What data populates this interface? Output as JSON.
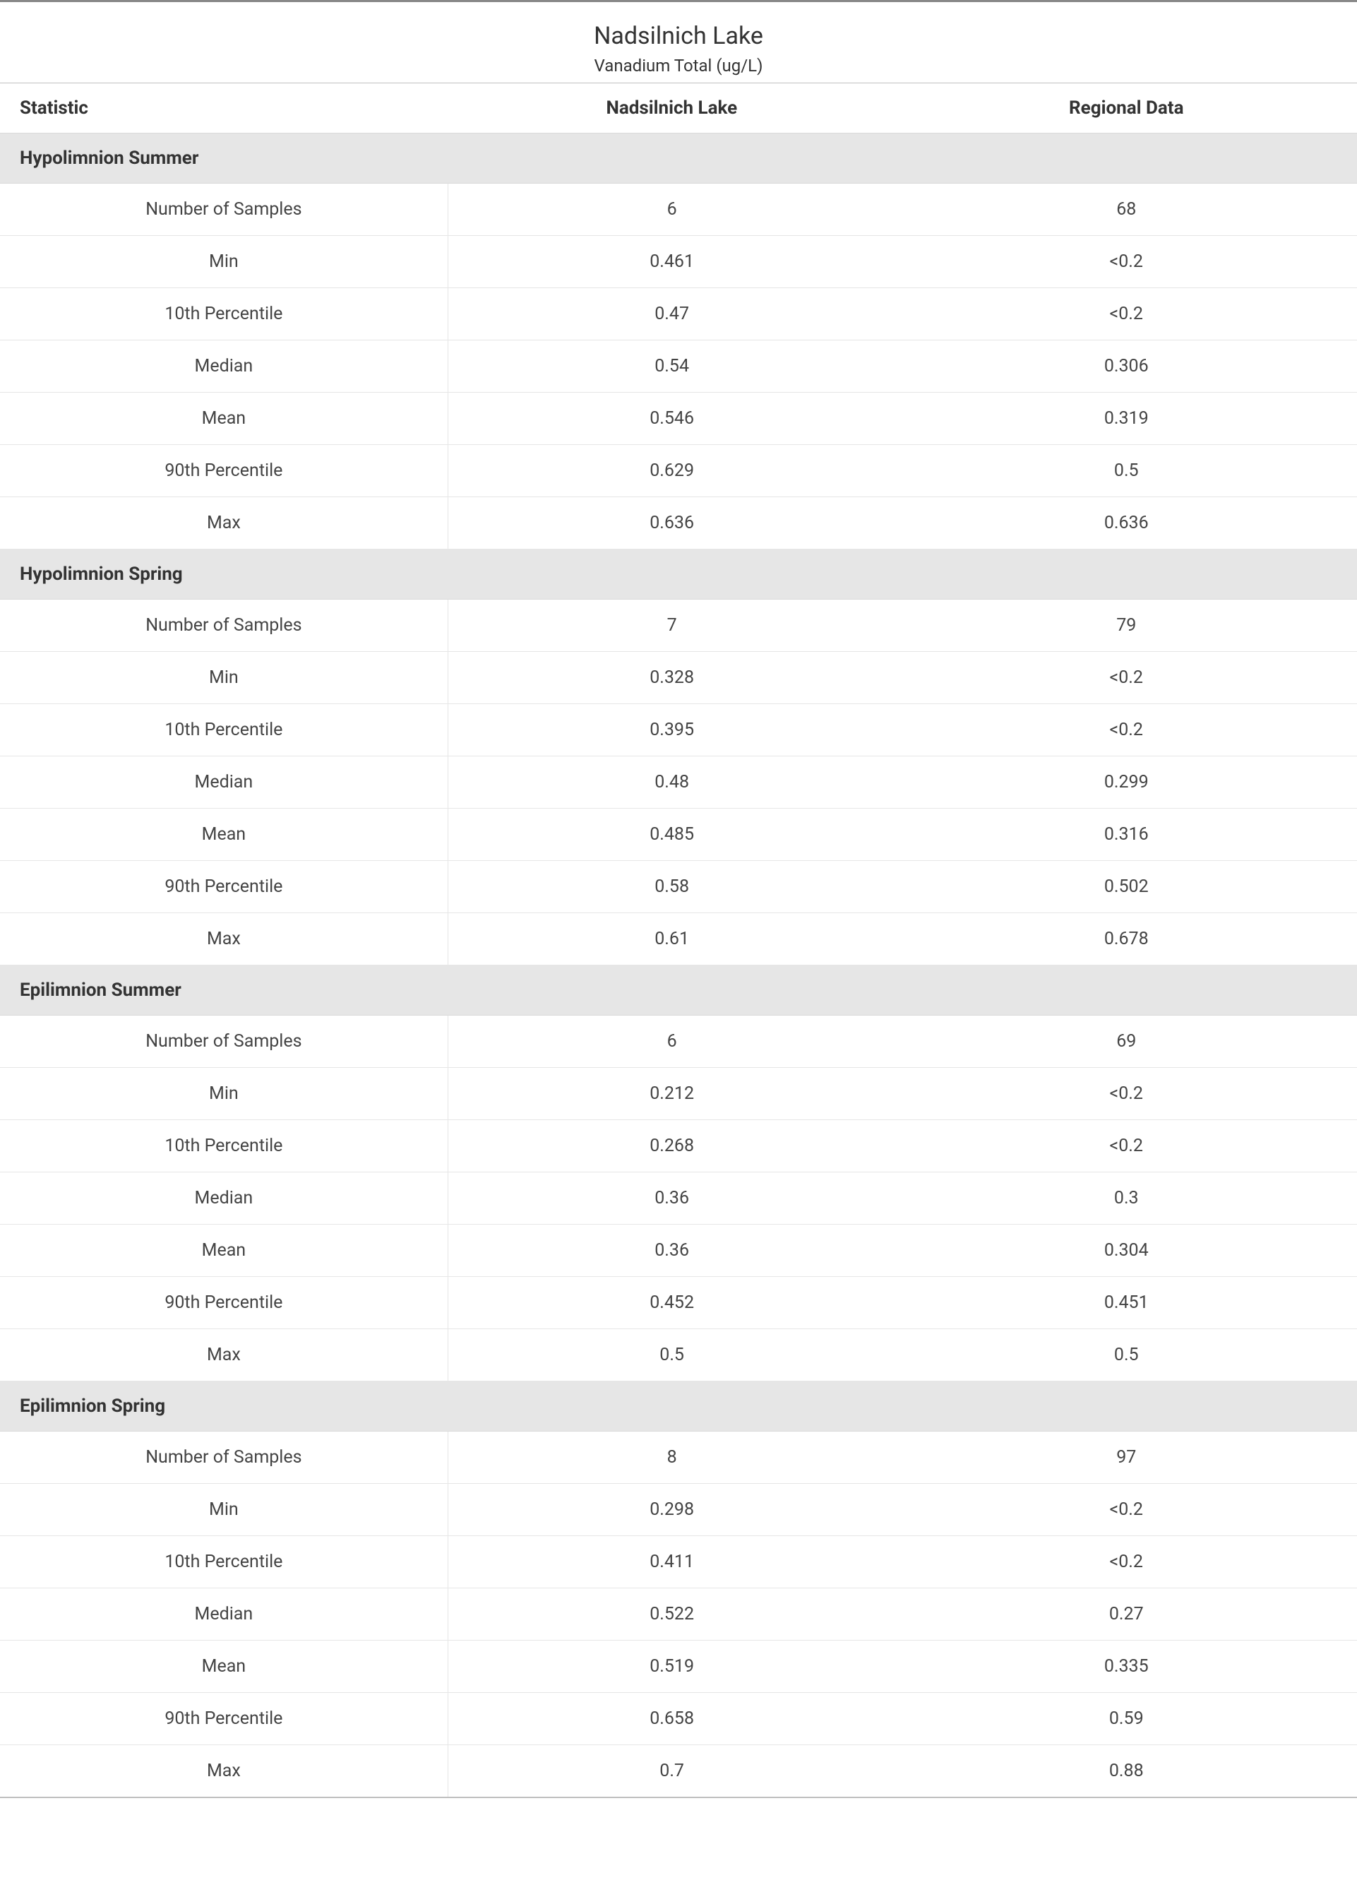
{
  "title": "Nadsilnich Lake",
  "subtitle": "Vanadium Total (ug/L)",
  "columns": {
    "statistic": "Statistic",
    "lake": "Nadsilnich Lake",
    "region": "Regional Data"
  },
  "colors": {
    "top_border": "#888888",
    "header_border": "#bfbfbf",
    "row_border": "#e6e6e6",
    "section_bg": "#e6e6e6",
    "text": "#333333",
    "data_text": "#444444",
    "background": "#ffffff"
  },
  "typography": {
    "title_fontsize": 34,
    "subtitle_fontsize": 24,
    "header_fontsize": 26,
    "section_fontsize": 26,
    "data_fontsize": 25,
    "font_family": "Segoe UI"
  },
  "sections": [
    {
      "label": "Hypolimnion Summer",
      "rows": [
        {
          "stat": "Number of Samples",
          "lake": "6",
          "region": "68"
        },
        {
          "stat": "Min",
          "lake": "0.461",
          "region": "<0.2"
        },
        {
          "stat": "10th Percentile",
          "lake": "0.47",
          "region": "<0.2"
        },
        {
          "stat": "Median",
          "lake": "0.54",
          "region": "0.306"
        },
        {
          "stat": "Mean",
          "lake": "0.546",
          "region": "0.319"
        },
        {
          "stat": "90th Percentile",
          "lake": "0.629",
          "region": "0.5"
        },
        {
          "stat": "Max",
          "lake": "0.636",
          "region": "0.636"
        }
      ]
    },
    {
      "label": "Hypolimnion Spring",
      "rows": [
        {
          "stat": "Number of Samples",
          "lake": "7",
          "region": "79"
        },
        {
          "stat": "Min",
          "lake": "0.328",
          "region": "<0.2"
        },
        {
          "stat": "10th Percentile",
          "lake": "0.395",
          "region": "<0.2"
        },
        {
          "stat": "Median",
          "lake": "0.48",
          "region": "0.299"
        },
        {
          "stat": "Mean",
          "lake": "0.485",
          "region": "0.316"
        },
        {
          "stat": "90th Percentile",
          "lake": "0.58",
          "region": "0.502"
        },
        {
          "stat": "Max",
          "lake": "0.61",
          "region": "0.678"
        }
      ]
    },
    {
      "label": "Epilimnion Summer",
      "rows": [
        {
          "stat": "Number of Samples",
          "lake": "6",
          "region": "69"
        },
        {
          "stat": "Min",
          "lake": "0.212",
          "region": "<0.2"
        },
        {
          "stat": "10th Percentile",
          "lake": "0.268",
          "region": "<0.2"
        },
        {
          "stat": "Median",
          "lake": "0.36",
          "region": "0.3"
        },
        {
          "stat": "Mean",
          "lake": "0.36",
          "region": "0.304"
        },
        {
          "stat": "90th Percentile",
          "lake": "0.452",
          "region": "0.451"
        },
        {
          "stat": "Max",
          "lake": "0.5",
          "region": "0.5"
        }
      ]
    },
    {
      "label": "Epilimnion Spring",
      "rows": [
        {
          "stat": "Number of Samples",
          "lake": "8",
          "region": "97"
        },
        {
          "stat": "Min",
          "lake": "0.298",
          "region": "<0.2"
        },
        {
          "stat": "10th Percentile",
          "lake": "0.411",
          "region": "<0.2"
        },
        {
          "stat": "Median",
          "lake": "0.522",
          "region": "0.27"
        },
        {
          "stat": "Mean",
          "lake": "0.519",
          "region": "0.335"
        },
        {
          "stat": "90th Percentile",
          "lake": "0.658",
          "region": "0.59"
        },
        {
          "stat": "Max",
          "lake": "0.7",
          "region": "0.88"
        }
      ]
    }
  ]
}
